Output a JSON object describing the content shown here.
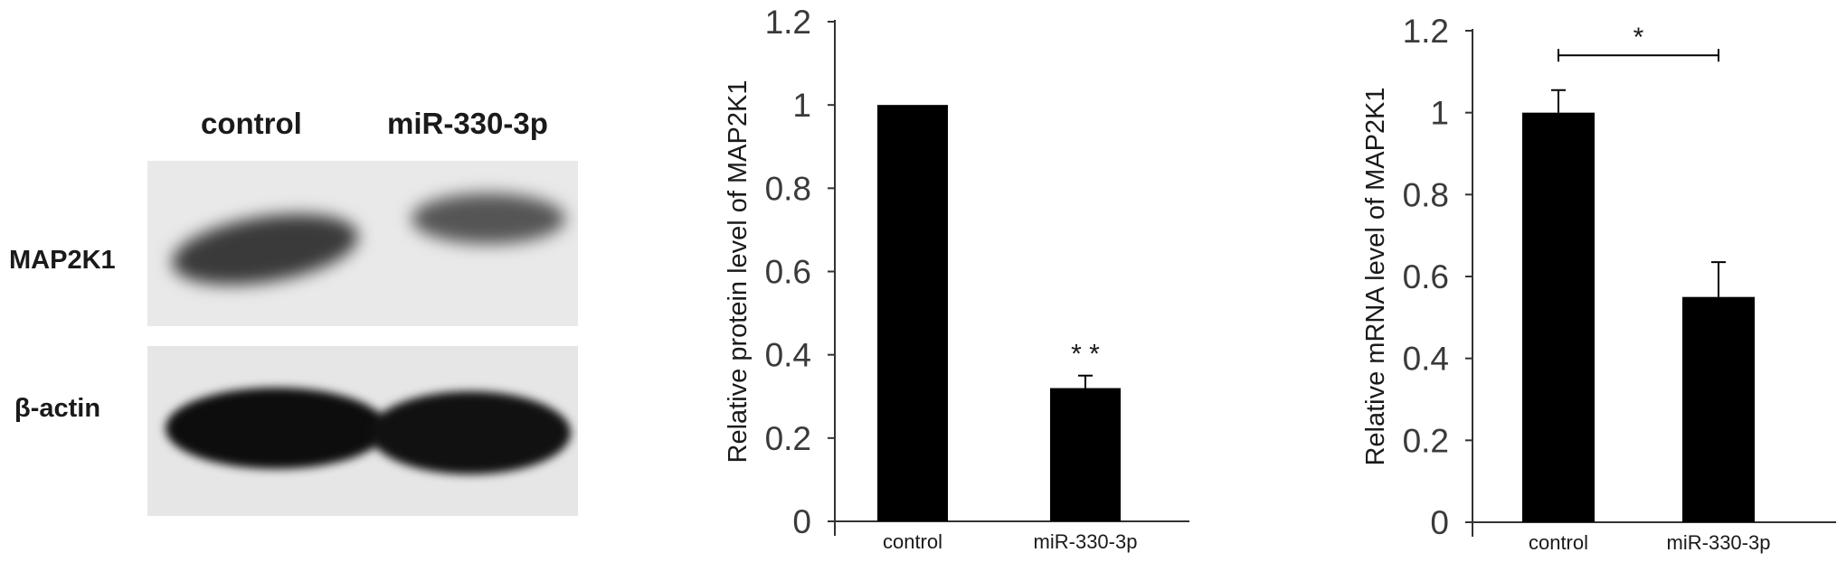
{
  "blot": {
    "lanes": [
      "control",
      "miR-330-3p"
    ],
    "rows": [
      "MAP2K1",
      "β-actin"
    ]
  },
  "chart_data": [
    {
      "type": "bar",
      "categories": [
        "control",
        "miR-330-3p"
      ],
      "values": [
        1.0,
        0.32
      ],
      "errors": [
        0,
        0.03
      ],
      "ylabel": "Relative protein level of MAP2K1",
      "ylim": [
        0,
        1.2
      ],
      "yticks": [
        "0",
        "0.2",
        "0.4",
        "0.6",
        "0.8",
        "1",
        "1.2"
      ],
      "annotations": [
        {
          "category": "miR-330-3p",
          "text": "* *"
        }
      ],
      "bar_color": "#000000"
    },
    {
      "type": "bar",
      "categories": [
        "control",
        "miR-330-3p"
      ],
      "values": [
        1.0,
        0.55
      ],
      "errors": [
        0.055,
        0.085
      ],
      "ylabel": "Relative mRNA level of MAP2K1",
      "ylim": [
        0,
        1.2
      ],
      "yticks": [
        "0",
        "0.2",
        "0.4",
        "0.6",
        "0.8",
        "1",
        "1.2"
      ],
      "annotations": [
        {
          "bracket": [
            "control",
            "miR-330-3p"
          ],
          "text": "*"
        }
      ],
      "bar_color": "#000000"
    }
  ]
}
